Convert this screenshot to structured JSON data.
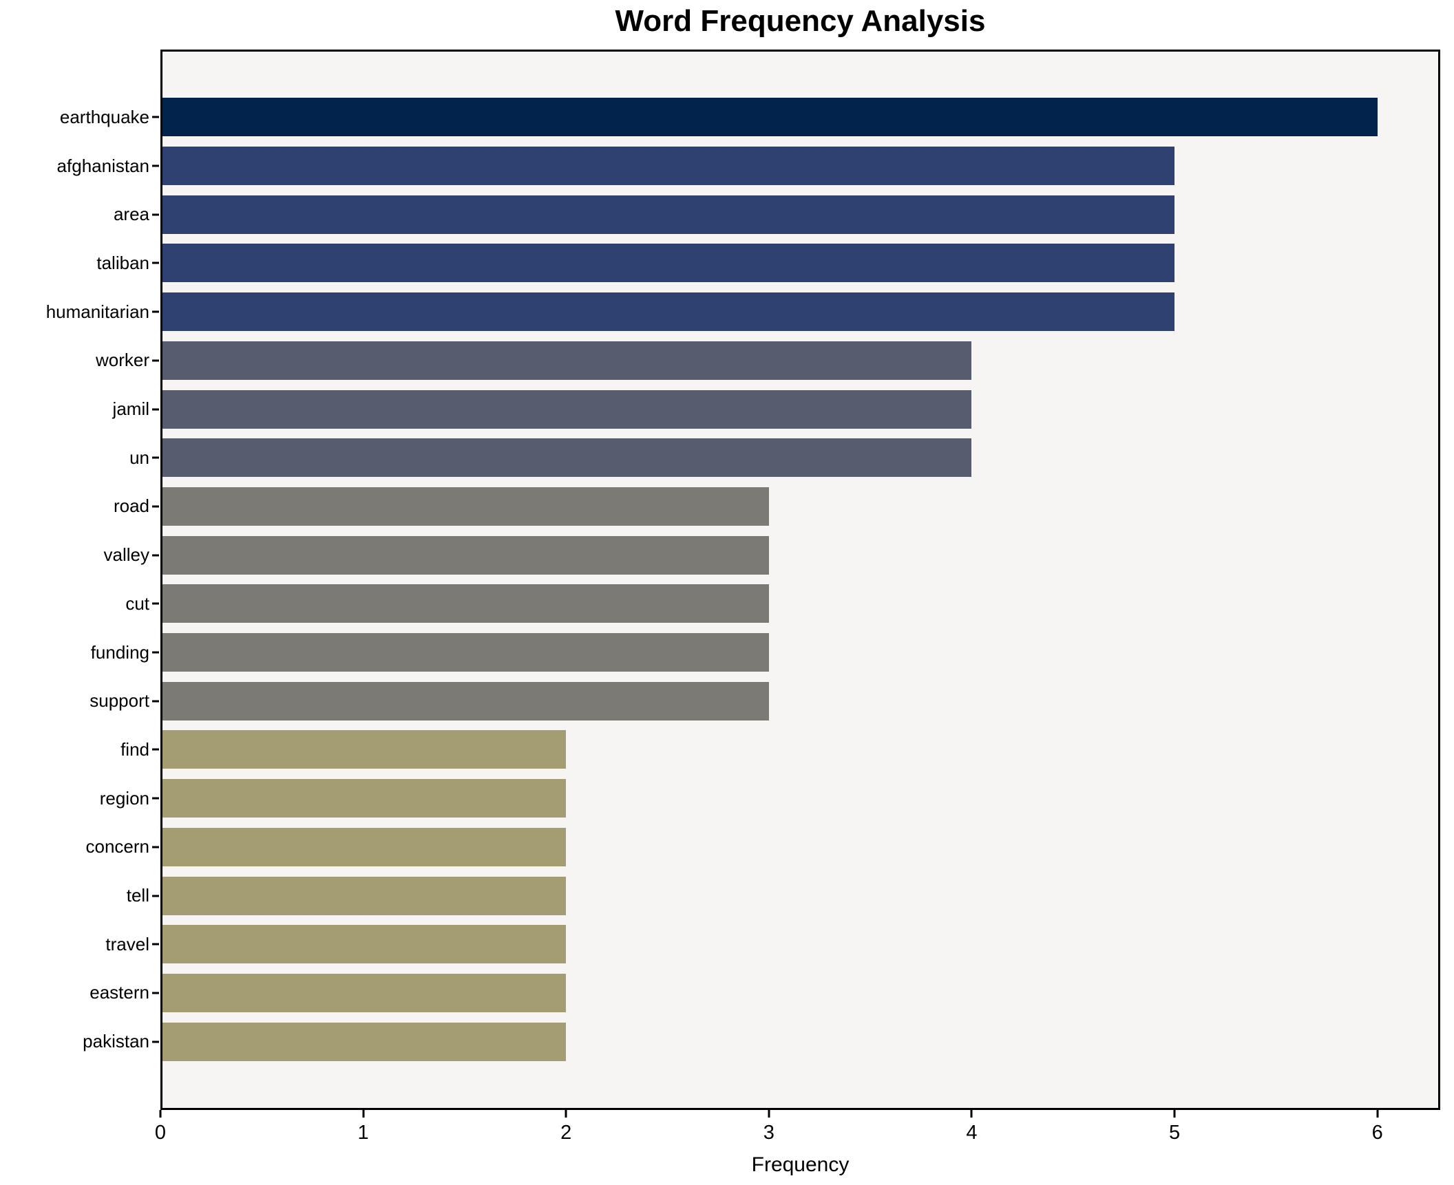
{
  "chart_data": {
    "type": "bar",
    "orientation": "horizontal",
    "title": "Word Frequency Analysis",
    "xlabel": "Frequency",
    "ylabel": "",
    "categories": [
      "earthquake",
      "afghanistan",
      "area",
      "taliban",
      "humanitarian",
      "worker",
      "jamil",
      "un",
      "road",
      "valley",
      "cut",
      "funding",
      "support",
      "find",
      "region",
      "concern",
      "tell",
      "travel",
      "eastern",
      "pakistan"
    ],
    "values": [
      6,
      5,
      5,
      5,
      5,
      4,
      4,
      4,
      3,
      3,
      3,
      3,
      3,
      2,
      2,
      2,
      2,
      2,
      2,
      2
    ],
    "bar_colors": [
      "#02234c",
      "#2e4170",
      "#2e4170",
      "#2e4170",
      "#2e4170",
      "#575d6e",
      "#575d6e",
      "#575d6e",
      "#7b7a74",
      "#7b7a74",
      "#7b7a74",
      "#7b7a74",
      "#7b7a74",
      "#a49d72",
      "#a49d72",
      "#a49d72",
      "#a49d72",
      "#a49d72",
      "#a49d72",
      "#a49d72"
    ],
    "xticks": [
      0,
      1,
      2,
      3,
      4,
      5,
      6
    ],
    "xlim": [
      0,
      6.31
    ],
    "grid": false,
    "legend_position": "none",
    "plot_background": "#f6f5f4",
    "figure_background": "#ffffff",
    "spine_color": "#000000"
  }
}
